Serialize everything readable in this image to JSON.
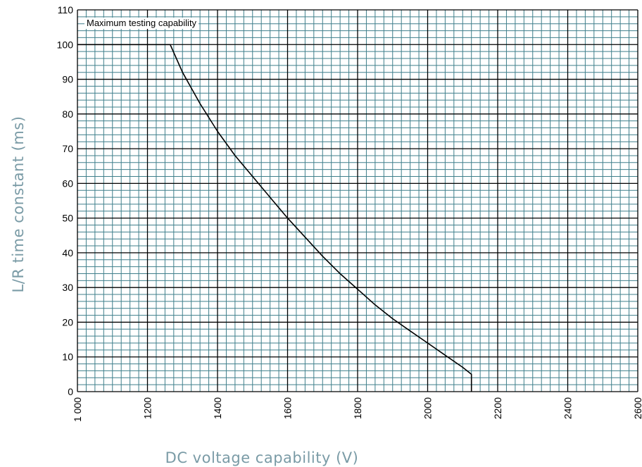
{
  "chart_data": {
    "type": "line",
    "title": "",
    "xlabel": "DC voltage capability (V)",
    "ylabel": "L/R time constant (ms)",
    "xlim": [
      1000,
      2600
    ],
    "ylim": [
      0,
      110
    ],
    "x_ticks": [
      1000,
      1200,
      1400,
      1600,
      1800,
      2000,
      2200,
      2400,
      2600
    ],
    "x_tick_labels": [
      "1 000",
      "1200",
      "1400",
      "1600",
      "1800",
      "2000",
      "2200",
      "2400",
      "2600"
    ],
    "y_ticks": [
      0,
      10,
      20,
      30,
      40,
      50,
      60,
      70,
      80,
      90,
      100,
      110
    ],
    "y_tick_labels": [
      "0",
      "10",
      "20",
      "30",
      "40",
      "50",
      "60",
      "70",
      "80",
      "90",
      "100",
      "110"
    ],
    "grid": true,
    "annotation": "Maximum testing capability",
    "series": [
      {
        "color": "#000000",
        "x": [
          1000,
          1265,
          1300,
          1350,
          1400,
          1450,
          1500,
          1550,
          1600,
          1650,
          1700,
          1750,
          1800,
          1850,
          1900,
          1950,
          2000,
          2050,
          2100,
          2125,
          2125
        ],
        "y": [
          100,
          100,
          92,
          83,
          75,
          68,
          62,
          56,
          50,
          44.5,
          39,
          34,
          29.5,
          25,
          21,
          17.5,
          14,
          10.5,
          7,
          5,
          0
        ]
      }
    ],
    "colors": {
      "minor_grid": "#3f7f8b",
      "major_grid": "#000000",
      "axis_title": "#7a9ba6"
    }
  }
}
